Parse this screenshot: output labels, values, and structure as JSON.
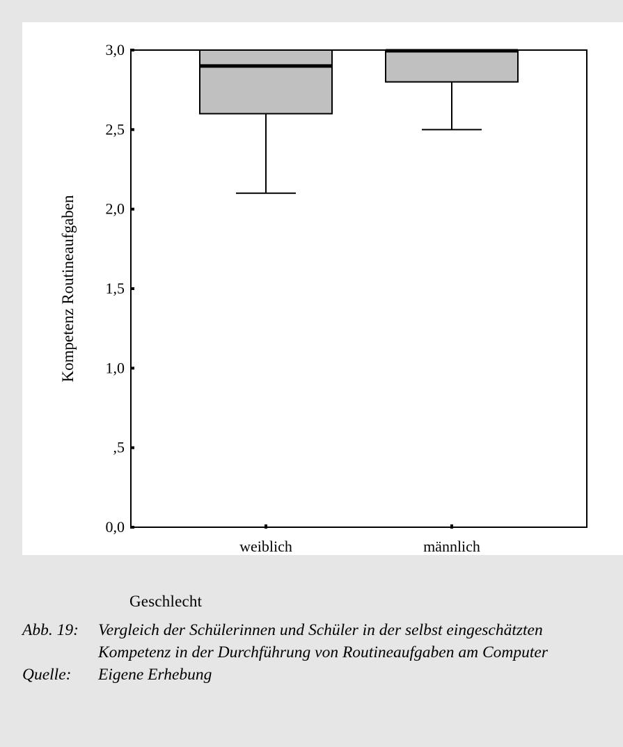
{
  "chart_data": {
    "type": "boxplot",
    "ylabel": "Kompetenz Routineaufgaben",
    "xlabel": "Geschlecht",
    "ylim": [
      0,
      3
    ],
    "yticks": [
      {
        "value": 0.0,
        "label": "0,0"
      },
      {
        "value": 0.5,
        "label": ",5"
      },
      {
        "value": 1.0,
        "label": "1,0"
      },
      {
        "value": 1.5,
        "label": "1,5"
      },
      {
        "value": 2.0,
        "label": "2,0"
      },
      {
        "value": 2.5,
        "label": "2,5"
      },
      {
        "value": 3.0,
        "label": "3,0"
      }
    ],
    "categories": [
      "weiblich",
      "männlich"
    ],
    "boxes": [
      {
        "category": "weiblich",
        "whisker_low": 2.1,
        "q1": 2.6,
        "median": 2.9,
        "q3": 3.0,
        "whisker_high": 3.0
      },
      {
        "category": "männlich",
        "whisker_low": 2.5,
        "q1": 2.8,
        "median": 3.0,
        "q3": 3.0,
        "whisker_high": 3.0
      }
    ],
    "colors": {
      "box_fill": "#c0c0c0",
      "stroke": "#000000",
      "panel": "#ffffff",
      "background": "#e6e6e6"
    }
  },
  "caption": {
    "figure_label": "Abb. 19:",
    "figure_text": "Vergleich der Schülerinnen und Schüler in der selbst eingeschätzten Kompetenz in der Durchführung von Routineaufgaben am Computer",
    "source_label": "Quelle:",
    "source_text": "Eigene Erhebung"
  }
}
